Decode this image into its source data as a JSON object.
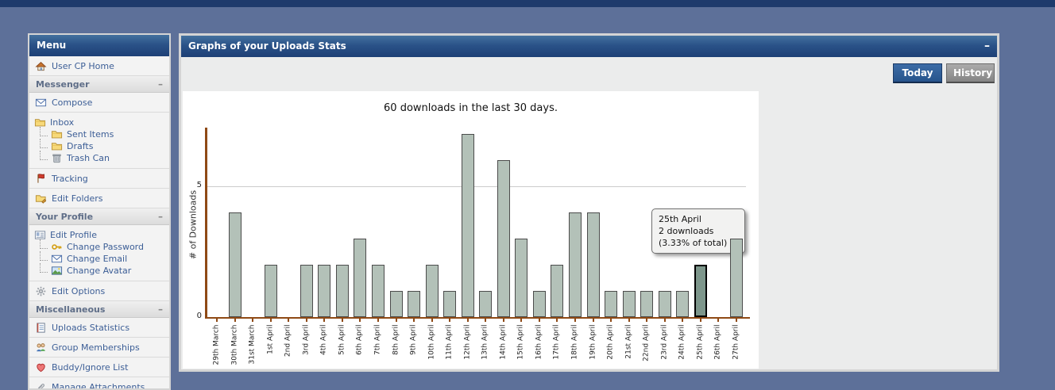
{
  "ui": {
    "minus": "–"
  },
  "sidebar": {
    "title": "Menu",
    "items": [
      {
        "t": "link",
        "icon": "home",
        "label": "User CP Home"
      },
      {
        "t": "section",
        "label": "Messenger"
      },
      {
        "t": "link",
        "icon": "envelope",
        "label": "Compose"
      },
      {
        "t": "group",
        "rows": [
          {
            "icon": "folder",
            "label": "Inbox"
          },
          {
            "icon": "folder",
            "label": "Sent Items",
            "sub": true
          },
          {
            "icon": "folder",
            "label": "Drafts",
            "sub": true
          },
          {
            "icon": "trash",
            "label": "Trash Can",
            "sub": true
          }
        ]
      },
      {
        "t": "link",
        "icon": "flag",
        "label": "Tracking"
      },
      {
        "t": "link",
        "icon": "folder-edit",
        "label": "Edit Folders"
      },
      {
        "t": "section",
        "label": "Your Profile"
      },
      {
        "t": "group",
        "rows": [
          {
            "icon": "profile",
            "label": "Edit Profile"
          },
          {
            "icon": "key",
            "label": "Change Password",
            "sub": true
          },
          {
            "icon": "envelope",
            "label": "Change Email",
            "sub": true
          },
          {
            "icon": "picture",
            "label": "Change Avatar",
            "sub": true
          }
        ]
      },
      {
        "t": "link",
        "icon": "gear",
        "label": "Edit Options"
      },
      {
        "t": "section",
        "label": "Miscellaneous"
      },
      {
        "t": "link",
        "icon": "stats",
        "label": "Uploads Statistics"
      },
      {
        "t": "link",
        "icon": "group",
        "label": "Group Memberships"
      },
      {
        "t": "link",
        "icon": "heart",
        "label": "Buddy/Ignore List"
      },
      {
        "t": "link",
        "icon": "paperclip",
        "label": "Manage Attachments"
      }
    ]
  },
  "panel": {
    "title": "Graphs of your Uploads Stats",
    "buttons": {
      "today": "Today",
      "history": "History"
    }
  },
  "chart_data": {
    "type": "bar",
    "title": "60 downloads in the last 30 days.",
    "ylabel": "# of Downloads",
    "yticks": [
      0,
      5
    ],
    "ylim": [
      0,
      7.3
    ],
    "grid": "horizontal at 5",
    "categories": [
      "29th March",
      "30th March",
      "31st March",
      "1st April",
      "2nd April",
      "3rd April",
      "4th April",
      "5th April",
      "6th April",
      "7th April",
      "8th April",
      "9th April",
      "10th April",
      "11th April",
      "12th April",
      "13th April",
      "14th April",
      "15th April",
      "16th April",
      "17th April",
      "18th April",
      "19th April",
      "20th April",
      "21st April",
      "22nd April",
      "23rd April",
      "24th April",
      "25th April",
      "26th April",
      "27th April"
    ],
    "values": [
      0,
      4,
      0,
      2,
      0,
      2,
      2,
      2,
      3,
      2,
      1,
      1,
      2,
      1,
      7,
      1,
      6,
      3,
      1,
      2,
      4,
      4,
      1,
      1,
      1,
      1,
      1,
      2,
      0,
      3
    ],
    "highlight_index": 27,
    "tooltip": {
      "lines": [
        "25th April",
        "2 downloads",
        "(3.33% of total)"
      ]
    },
    "colors": {
      "bar": "#b3c1b8",
      "bar_border": "#4c4c4c",
      "highlight": "#7d968b",
      "highlight_border": "#000000",
      "axis": "#8f4a15",
      "gridline": "#cccccc"
    }
  }
}
